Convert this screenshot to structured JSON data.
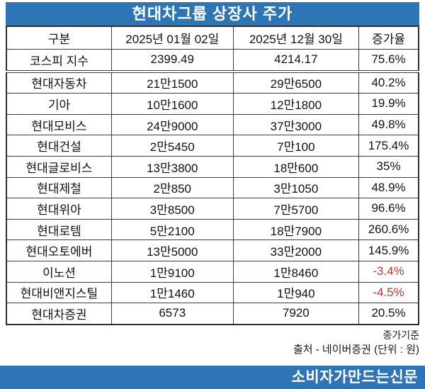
{
  "chart_data": {
    "type": "table",
    "title": "현대차그룹 상장사 주가",
    "headers": [
      "구분",
      "2025년 01월 02일",
      "2025년 12월 30일",
      "증가율"
    ],
    "rows": [
      {
        "name": "코스피 지수",
        "start": "2399.49",
        "end": "4214.17",
        "change": "75.6%",
        "negative": false
      },
      {
        "name": "현대자동차",
        "start": "21만1500",
        "end": "29만6500",
        "change": "40.2%",
        "negative": false
      },
      {
        "name": "기아",
        "start": "10만1600",
        "end": "12만1800",
        "change": "19.9%",
        "negative": false
      },
      {
        "name": "현대모비스",
        "start": "24만9000",
        "end": "37만3000",
        "change": "49.8%",
        "negative": false
      },
      {
        "name": "현대건설",
        "start": "2만5450",
        "end": "7만100",
        "change": "175.4%",
        "negative": false
      },
      {
        "name": "현대글로비스",
        "start": "13만3800",
        "end": "18만600",
        "change": "35%",
        "negative": false
      },
      {
        "name": "현대제철",
        "start": "2만850",
        "end": "3만1050",
        "change": "48.9%",
        "negative": false
      },
      {
        "name": "현대위아",
        "start": "3만8500",
        "end": "7만5700",
        "change": "96.6%",
        "negative": false
      },
      {
        "name": "현대로템",
        "start": "5만2100",
        "end": "18만7900",
        "change": "260.6%",
        "negative": false
      },
      {
        "name": "현대오토에버",
        "start": "13만5000",
        "end": "33만2000",
        "change": "145.9%",
        "negative": false
      },
      {
        "name": "이노션",
        "start": "1만9100",
        "end": "1만8460",
        "change": "-3.4%",
        "negative": true
      },
      {
        "name": "현대비앤지스틸",
        "start": "1만1460",
        "end": "1만940",
        "change": "-4.5%",
        "negative": true
      },
      {
        "name": "현대차증권",
        "start": "6573",
        "end": "7920",
        "change": "20.5%",
        "negative": false
      }
    ]
  },
  "footer": {
    "note1": "종가기준",
    "note2": "출처 - 네이버증권 (단위 : 원)",
    "banner": "소비자가만드는신문"
  },
  "colors": {
    "accent_blue": "#2E75B6",
    "negative_red": "#C0342E"
  }
}
